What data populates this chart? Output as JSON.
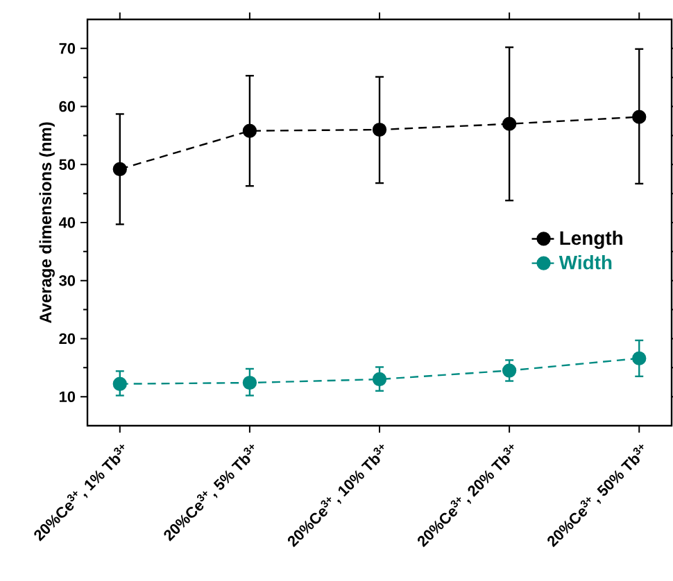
{
  "chart_data": {
    "type": "line",
    "ylabel": "Average dimensions (nm)",
    "categories": [
      "20%Ce$^{3+}$, 1% Tb$^{3+}$",
      "20%Ce$^{3+}$, 5% Tb$^{3+}$",
      "20%Ce$^{3+}$, 10% Tb$^{3+}$",
      "20%Ce$^{3+}$, 20% Tb$^{3+}$",
      "20%Ce$^{3+}$, 50% Tb$^{3+}$"
    ],
    "series": [
      {
        "name": "Length",
        "color": "#000000",
        "values": [
          49.2,
          55.8,
          56.0,
          57.0,
          58.2
        ],
        "errors": [
          [
            39.7,
            58.7
          ],
          [
            46.3,
            65.3
          ],
          [
            46.8,
            65.1
          ],
          [
            43.8,
            70.2
          ],
          [
            46.7,
            69.9
          ]
        ]
      },
      {
        "name": "Width",
        "color": "#008b82",
        "values": [
          12.2,
          12.4,
          13.0,
          14.5,
          16.6
        ],
        "errors": [
          [
            10.2,
            14.4
          ],
          [
            10.2,
            14.8
          ],
          [
            11.0,
            15.1
          ],
          [
            12.7,
            16.3
          ],
          [
            13.5,
            19.7
          ]
        ]
      }
    ],
    "ylim": [
      5,
      75
    ],
    "yticks": [
      10,
      20,
      30,
      40,
      50,
      60,
      70
    ],
    "grid": false,
    "legend": "right",
    "marker": "circle",
    "line_style": "dashed"
  }
}
